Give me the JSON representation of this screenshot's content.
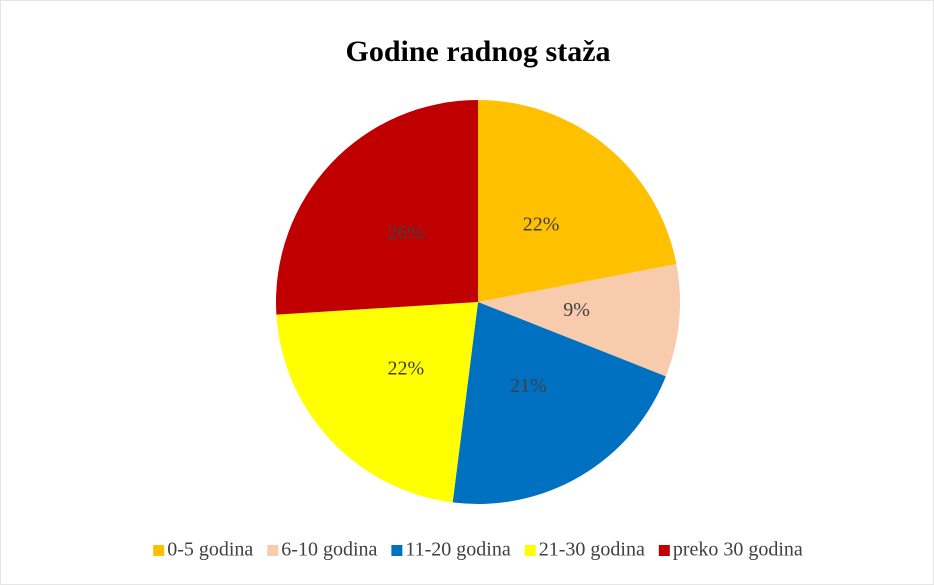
{
  "chart_data": {
    "type": "pie",
    "title": "Godine radnog staža",
    "categories": [
      "0-5 godina",
      "6-10 godina",
      "11-20 godina",
      "21-30 godina",
      "preko 30 godina"
    ],
    "values": [
      22,
      9,
      21,
      22,
      26
    ],
    "value_labels": [
      "22%",
      "9%",
      "21%",
      "22%",
      "26%"
    ],
    "colors": [
      "#ffc000",
      "#f8cbad",
      "#0070c0",
      "#ffff00",
      "#c00000"
    ],
    "legend": "bottom"
  }
}
